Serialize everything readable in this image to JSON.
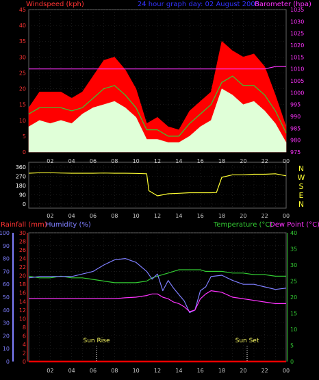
{
  "header": {
    "left": "Windspeed (kph)",
    "center": "24 hour graph day: 02 August 2005",
    "right": "Barometer (hpa)"
  },
  "bottom_labels": {
    "rainfall": "Rainfall (mm)",
    "humidity": "Humidity (%)",
    "temperature": "Temperature (°C)",
    "dewpoint": "Dew Point (°C)"
  },
  "markers": {
    "sunrise": "Sun Rise",
    "sunset": "Sun Set"
  },
  "colors": {
    "gust": "#ff0000",
    "wind": "#e0ffd8",
    "avg": "#33cc33",
    "baro": "#ff33ff",
    "winddir": "#ffff33",
    "humidity": "#7f7fff",
    "temp": "#33cc33",
    "dew": "#ff33ff",
    "rain": "#ff0000",
    "axis_left": "#ff3333",
    "axis_right_top": "#ff33ff",
    "axis_humidity": "#7f7fff",
    "axis_rain": "#ff3333",
    "axis_temp": "#33cc33",
    "grid": "#333333"
  },
  "x_ticks": [
    "02",
    "04",
    "06",
    "08",
    "10",
    "12",
    "14",
    "16",
    "18",
    "20",
    "22",
    "00"
  ],
  "chart_data": [
    {
      "type": "line",
      "title": "24 hour graph day: 02 August 2005",
      "ylabel": "Windspeed (kph)",
      "y2label": "Barometer (hpa)",
      "ylim": [
        0,
        45
      ],
      "y2lim": [
        975,
        1035
      ],
      "yticks": [
        0,
        5,
        10,
        15,
        20,
        25,
        30,
        35,
        40,
        45
      ],
      "y2ticks": [
        975,
        980,
        985,
        990,
        995,
        1000,
        1005,
        1010,
        1015,
        1020,
        1025,
        1030,
        1035
      ],
      "x": [
        0,
        1,
        2,
        3,
        4,
        5,
        6,
        7,
        8,
        9,
        10,
        11,
        12,
        13,
        14,
        15,
        16,
        17,
        18,
        19,
        20,
        21,
        22,
        23,
        24
      ],
      "series": [
        {
          "name": "Gust",
          "values": [
            14,
            19,
            19,
            19,
            17,
            19,
            24,
            29,
            30,
            26,
            20,
            9,
            11,
            8,
            7,
            13,
            16,
            19,
            35,
            32,
            30,
            31,
            27,
            18,
            8
          ]
        },
        {
          "name": "Windspeed",
          "values": [
            8,
            10,
            9,
            10,
            9,
            12,
            14,
            15,
            16,
            14,
            11,
            4,
            4,
            3,
            3,
            5,
            8,
            10,
            20,
            18,
            15,
            16,
            13,
            9,
            3
          ]
        },
        {
          "name": "Average",
          "values": [
            12,
            14,
            14,
            14,
            13,
            14,
            17,
            20,
            21,
            18,
            14,
            7,
            7,
            5,
            5,
            9,
            12,
            15,
            22,
            24,
            21,
            21,
            18,
            13,
            6
          ]
        },
        {
          "name": "Barometer",
          "values": [
            1010,
            1010,
            1010,
            1010,
            1010,
            1010,
            1010,
            1010,
            1010,
            1010,
            1010,
            1010,
            1010,
            1010,
            1010,
            1010,
            1010,
            1010,
            1010,
            1010,
            1010,
            1010,
            1010,
            1011,
            1011
          ]
        }
      ]
    },
    {
      "type": "line",
      "ylabel": "",
      "ylim": [
        0,
        360
      ],
      "yticks": [
        0,
        90,
        180,
        270,
        360
      ],
      "right_labels": [
        "N",
        "W",
        "S",
        "E",
        "N"
      ],
      "x": [
        0,
        1,
        2,
        3,
        4,
        5,
        6,
        7,
        8,
        9,
        10,
        11,
        11.2,
        12,
        13,
        14,
        15,
        16,
        17,
        17.5,
        18,
        19,
        20,
        21,
        22,
        23,
        24
      ],
      "series": [
        {
          "name": "Wind Direction",
          "values": [
            300,
            305,
            305,
            302,
            300,
            300,
            300,
            302,
            300,
            300,
            298,
            295,
            130,
            80,
            100,
            105,
            110,
            110,
            110,
            112,
            260,
            285,
            285,
            290,
            290,
            295,
            275
          ]
        }
      ]
    },
    {
      "type": "line",
      "ylabel": "Humidity (%)",
      "ylim": [
        0,
        100
      ],
      "yticks": [
        0,
        10,
        20,
        30,
        40,
        50,
        60,
        70,
        80,
        90,
        100
      ],
      "y_rain_ticks": [
        0,
        2,
        4,
        6,
        8,
        10,
        12,
        14,
        16,
        18,
        20,
        22,
        24,
        26,
        28,
        30
      ],
      "y2label": "Temperature (°C)",
      "y2lim": [
        0,
        40
      ],
      "y2ticks": [
        0,
        5,
        10,
        15,
        20,
        25,
        30,
        35,
        40
      ],
      "x": [
        0,
        1,
        2,
        3,
        4,
        5,
        6,
        7,
        8,
        9,
        10,
        11,
        11.5,
        12,
        12.5,
        13,
        13.5,
        14,
        14.5,
        15,
        15.5,
        16,
        16.5,
        17,
        18,
        19,
        20,
        21,
        22,
        23,
        24
      ],
      "series": [
        {
          "name": "Humidity",
          "values": [
            65,
            66,
            66,
            66,
            66,
            68,
            70,
            75,
            79,
            80,
            77,
            70,
            64,
            68,
            55,
            63,
            57,
            52,
            47,
            38,
            40,
            55,
            58,
            66,
            67,
            63,
            60,
            60,
            58,
            56,
            57
          ]
        },
        {
          "name": "Temperature (°C)",
          "values": [
            26.5,
            26,
            26,
            26.5,
            26,
            26,
            25.5,
            25,
            24.5,
            24.5,
            24.5,
            25,
            26,
            26.5,
            27,
            27.5,
            28,
            28.5,
            28.5,
            28.5,
            28.5,
            28.5,
            28,
            28,
            28,
            27.5,
            27.5,
            27,
            27,
            26.5,
            26.5
          ]
        },
        {
          "name": "Dew Point (°C)",
          "values": [
            19.5,
            19.5,
            19.5,
            19.5,
            19.5,
            19.5,
            19.5,
            19.5,
            19.5,
            19.8,
            20,
            20.5,
            21,
            21,
            20,
            19.5,
            18.5,
            18,
            17,
            15.5,
            16,
            19.5,
            21,
            22,
            21.5,
            20,
            19.5,
            19,
            18.5,
            18,
            18
          ]
        },
        {
          "name": "Rainfall (mm)",
          "values": [
            0,
            0,
            0,
            0,
            0,
            0,
            0,
            0,
            0,
            0,
            0,
            0,
            0,
            0,
            0,
            0,
            0,
            0,
            0,
            0,
            0,
            0,
            0,
            0,
            0,
            0,
            0,
            0,
            0,
            0,
            0
          ]
        }
      ]
    }
  ]
}
